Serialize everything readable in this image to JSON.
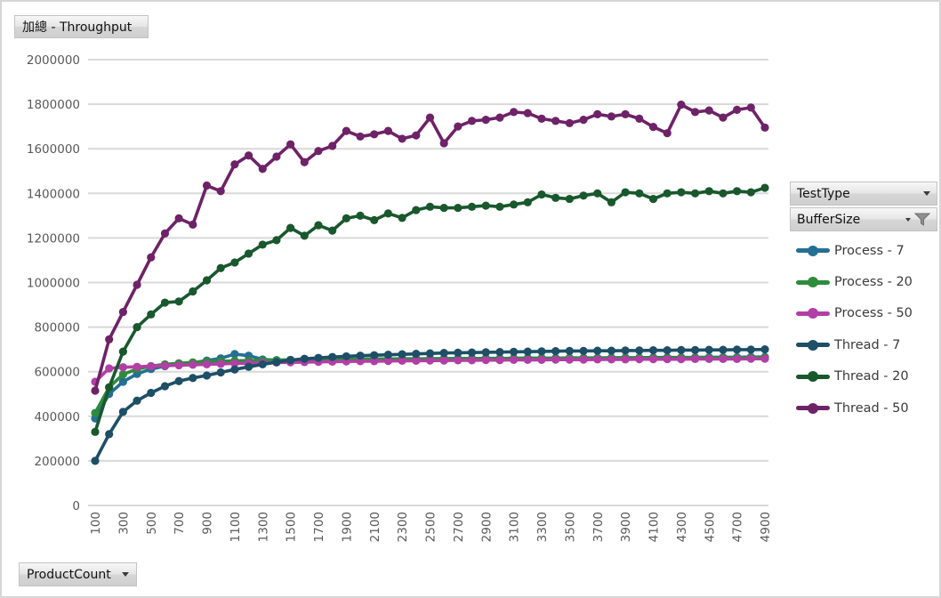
{
  "title_button": {
    "label": "加總 - Throughput"
  },
  "pivot_buttons": {
    "test_type": {
      "label": "TestType"
    },
    "buffer_size": {
      "label": "BufferSize"
    },
    "product_count": {
      "label": "ProductCount"
    }
  },
  "icons": {
    "filter_color": "#8f8f8f",
    "arrow_color": "#3a3a3a"
  },
  "chart_data": {
    "type": "line",
    "title": "加總 - Throughput",
    "xlabel": "ProductCount",
    "ylabel": "",
    "grid": "horizontal",
    "legend_position": "right",
    "gridline_color": "#d9d9d9",
    "ylim": [
      0,
      2000000
    ],
    "yticks": [
      0,
      200000,
      400000,
      600000,
      800000,
      1000000,
      1200000,
      1400000,
      1600000,
      1800000,
      2000000
    ],
    "xticks": [
      100,
      300,
      500,
      700,
      900,
      1100,
      1300,
      1500,
      1700,
      1900,
      2100,
      2300,
      2500,
      2700,
      2900,
      3100,
      3300,
      3500,
      3700,
      3900,
      4100,
      4300,
      4500,
      4700,
      4900
    ],
    "x": [
      100,
      200,
      300,
      400,
      500,
      600,
      700,
      800,
      900,
      1000,
      1100,
      1200,
      1300,
      1400,
      1500,
      1600,
      1700,
      1800,
      1900,
      2000,
      2100,
      2200,
      2300,
      2400,
      2500,
      2600,
      2700,
      2800,
      2900,
      3000,
      3100,
      3200,
      3300,
      3400,
      3500,
      3600,
      3700,
      3800,
      3900,
      4000,
      4100,
      4200,
      4300,
      4400,
      4500,
      4600,
      4700,
      4800,
      4900
    ],
    "series": [
      {
        "name": "Process - 7",
        "color": "#256F94",
        "values": [
          390000,
          500000,
          555000,
          590000,
          612000,
          625000,
          633000,
          640000,
          650000,
          660000,
          679000,
          672000,
          655000,
          652000,
          653000,
          654000,
          655000,
          655000,
          656000,
          656000,
          657000,
          657000,
          658000,
          658000,
          658000,
          659000,
          659000,
          659000,
          660000,
          660000,
          660000,
          661000,
          661000,
          661000,
          662000,
          662000,
          662000,
          663000,
          663000,
          663000,
          664000,
          664000,
          664000,
          664000,
          665000,
          665000,
          665000,
          666000,
          666000
        ]
      },
      {
        "name": "Process - 20",
        "color": "#2E8B3B",
        "values": [
          415000,
          530000,
          588000,
          612000,
          625000,
          633000,
          638000,
          642000,
          645000,
          647000,
          649000,
          650000,
          651000,
          652000,
          653000,
          654000,
          654000,
          655000,
          655000,
          656000,
          656000,
          657000,
          657000,
          657000,
          658000,
          658000,
          658000,
          659000,
          659000,
          659000,
          660000,
          660000,
          660000,
          660000,
          661000,
          661000,
          661000,
          661000,
          662000,
          662000,
          662000,
          662000,
          662000,
          663000,
          663000,
          663000,
          663000,
          663000,
          664000
        ]
      },
      {
        "name": "Process - 50",
        "color": "#B23FA5",
        "values": [
          555000,
          615000,
          620000,
          622000,
          625000,
          627000,
          629000,
          631000,
          633000,
          635000,
          637000,
          638000,
          640000,
          641000,
          642000,
          643000,
          644000,
          645000,
          646000,
          647000,
          647000,
          648000,
          649000,
          649000,
          650000,
          650000,
          651000,
          651000,
          652000,
          652000,
          653000,
          653000,
          653000,
          654000,
          654000,
          654000,
          655000,
          655000,
          655000,
          656000,
          656000,
          656000,
          656000,
          657000,
          657000,
          657000,
          657000,
          658000,
          658000
        ]
      },
      {
        "name": "Thread - 7",
        "color": "#1D4F66",
        "values": [
          200000,
          320000,
          420000,
          470000,
          505000,
          535000,
          558000,
          572000,
          583000,
          597000,
          610000,
          622000,
          633000,
          643000,
          652000,
          658000,
          662000,
          666000,
          669000,
          672000,
          674000,
          676000,
          678000,
          680000,
          682000,
          684000,
          685000,
          686000,
          687000,
          688000,
          689000,
          690000,
          691000,
          692000,
          693000,
          693000,
          694000,
          694000,
          695000,
          695000,
          696000,
          696000,
          697000,
          697000,
          698000,
          698000,
          699000,
          699000,
          700000
        ]
      },
      {
        "name": "Thread - 20",
        "color": "#19582D",
        "values": [
          330000,
          530000,
          690000,
          800000,
          857000,
          910000,
          915000,
          960000,
          1010000,
          1065000,
          1090000,
          1130000,
          1170000,
          1190000,
          1245000,
          1210000,
          1257000,
          1233000,
          1288000,
          1300000,
          1280000,
          1310000,
          1290000,
          1325000,
          1340000,
          1335000,
          1335000,
          1340000,
          1345000,
          1340000,
          1350000,
          1360000,
          1395000,
          1380000,
          1375000,
          1390000,
          1400000,
          1360000,
          1405000,
          1400000,
          1375000,
          1400000,
          1405000,
          1400000,
          1410000,
          1400000,
          1410000,
          1405000,
          1425000
        ]
      },
      {
        "name": "Thread - 50",
        "color": "#6E2267",
        "values": [
          515000,
          745000,
          868000,
          990000,
          1113000,
          1220000,
          1288000,
          1260000,
          1435000,
          1410000,
          1530000,
          1570000,
          1510000,
          1565000,
          1620000,
          1540000,
          1590000,
          1613000,
          1680000,
          1655000,
          1665000,
          1680000,
          1645000,
          1660000,
          1740000,
          1625000,
          1700000,
          1725000,
          1730000,
          1740000,
          1765000,
          1760000,
          1735000,
          1725000,
          1715000,
          1730000,
          1755000,
          1745000,
          1755000,
          1735000,
          1698000,
          1670000,
          1798000,
          1765000,
          1772000,
          1740000,
          1775000,
          1785000,
          1695000
        ]
      }
    ]
  }
}
